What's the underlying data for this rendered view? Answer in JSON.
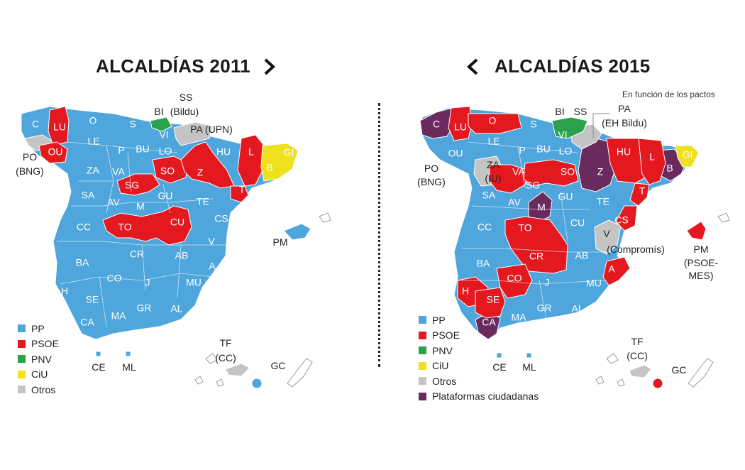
{
  "colors": {
    "PP": "#4ea6dc",
    "PSOE": "#e3191f",
    "PNV": "#2aa14a",
    "CiU": "#f0e11e",
    "Otros": "#c4c4c4",
    "Plataformas": "#6a2a5e"
  },
  "left_map": {
    "title": "ALCALDÍAS 2011",
    "nav_icon": "chevron-right-icon",
    "outside_labels": [
      {
        "id": "ss",
        "text": "SS"
      },
      {
        "id": "ss2",
        "text": "(Bildu)"
      },
      {
        "id": "pa",
        "text": "PA (UPN)"
      },
      {
        "id": "po",
        "text": "PO"
      },
      {
        "id": "po2",
        "text": "(BNG)"
      },
      {
        "id": "bi",
        "text": "BI"
      },
      {
        "id": "pm",
        "text": "PM"
      },
      {
        "id": "tf",
        "text": "TF"
      },
      {
        "id": "tf2",
        "text": "(CC)"
      },
      {
        "id": "gc",
        "text": "GC"
      },
      {
        "id": "ce",
        "text": "CE"
      },
      {
        "id": "ml",
        "text": "ML"
      }
    ],
    "provinces": [
      {
        "code": "C",
        "party": "PP"
      },
      {
        "code": "LU",
        "party": "PSOE"
      },
      {
        "code": "O",
        "party": "PP"
      },
      {
        "code": "S",
        "party": "PP"
      },
      {
        "code": "VI",
        "party": "PP"
      },
      {
        "code": "LE",
        "party": "PP"
      },
      {
        "code": "OU",
        "party": "PSOE"
      },
      {
        "code": "P",
        "party": "PP"
      },
      {
        "code": "BU",
        "party": "PP"
      },
      {
        "code": "LO",
        "party": "PP"
      },
      {
        "code": "HU",
        "party": "PP"
      },
      {
        "code": "L",
        "party": "PSOE"
      },
      {
        "code": "GI",
        "party": "CiU"
      },
      {
        "code": "B",
        "party": "CiU"
      },
      {
        "code": "ZA",
        "party": "PP"
      },
      {
        "code": "VA",
        "party": "PP"
      },
      {
        "code": "SO",
        "party": "PSOE"
      },
      {
        "code": "Z",
        "party": "PSOE"
      },
      {
        "code": "SG",
        "party": "PSOE"
      },
      {
        "code": "T",
        "party": "PSOE"
      },
      {
        "code": "SA",
        "party": "PP"
      },
      {
        "code": "AV",
        "party": "PP"
      },
      {
        "code": "GU",
        "party": "PP"
      },
      {
        "code": "M",
        "party": "PP"
      },
      {
        "code": "TE",
        "party": "PP"
      },
      {
        "code": "CS",
        "party": "PP"
      },
      {
        "code": "CC",
        "party": "PP"
      },
      {
        "code": "TO",
        "party": "PSOE"
      },
      {
        "code": "CU",
        "party": "PSOE"
      },
      {
        "code": "V",
        "party": "PP"
      },
      {
        "code": "CR",
        "party": "PP"
      },
      {
        "code": "AB",
        "party": "PP"
      },
      {
        "code": "BA",
        "party": "PP"
      },
      {
        "code": "A",
        "party": "PP"
      },
      {
        "code": "CO",
        "party": "PP"
      },
      {
        "code": "J",
        "party": "PP"
      },
      {
        "code": "MU",
        "party": "PP"
      },
      {
        "code": "H",
        "party": "PP"
      },
      {
        "code": "SE",
        "party": "PP"
      },
      {
        "code": "GR",
        "party": "PP"
      },
      {
        "code": "AL",
        "party": "PP"
      },
      {
        "code": "MA",
        "party": "PP"
      },
      {
        "code": "CA",
        "party": "PP"
      }
    ],
    "legend": [
      {
        "label": "PP",
        "party": "PP"
      },
      {
        "label": "PSOE",
        "party": "PSOE"
      },
      {
        "label": "PNV",
        "party": "PNV"
      },
      {
        "label": "CiU",
        "party": "CiU"
      },
      {
        "label": "Otros",
        "party": "Otros"
      }
    ]
  },
  "right_map": {
    "title": "ALCALDÍAS 2015",
    "nav_icon": "chevron-left-icon",
    "note": "En función de los pactos",
    "outside_labels": [
      {
        "id": "bi",
        "text": "BI"
      },
      {
        "id": "ss",
        "text": "SS"
      },
      {
        "id": "pa",
        "text": "PA"
      },
      {
        "id": "pa2",
        "text": "(EH Bildu)"
      },
      {
        "id": "po",
        "text": "PO"
      },
      {
        "id": "po2",
        "text": "(BNG)"
      },
      {
        "id": "za",
        "text": "ZA"
      },
      {
        "id": "za2",
        "text": "(IU)"
      },
      {
        "id": "v",
        "text": "V"
      },
      {
        "id": "v2",
        "text": "(Compromís)"
      },
      {
        "id": "pm",
        "text": "PM"
      },
      {
        "id": "pm2",
        "text": "(PSOE-"
      },
      {
        "id": "pm3",
        "text": "MES)"
      },
      {
        "id": "tf",
        "text": "TF"
      },
      {
        "id": "tf2",
        "text": "(CC)"
      },
      {
        "id": "gc",
        "text": "GC"
      },
      {
        "id": "ce",
        "text": "CE"
      },
      {
        "id": "ml",
        "text": "ML"
      }
    ],
    "provinces": [
      {
        "code": "C",
        "party": "Plataformas"
      },
      {
        "code": "LU",
        "party": "PSOE"
      },
      {
        "code": "O",
        "party": "PSOE"
      },
      {
        "code": "S",
        "party": "PP"
      },
      {
        "code": "VI",
        "party": "PNV"
      },
      {
        "code": "LE",
        "party": "PP"
      },
      {
        "code": "OU",
        "party": "PP"
      },
      {
        "code": "P",
        "party": "PP"
      },
      {
        "code": "BU",
        "party": "PP"
      },
      {
        "code": "LO",
        "party": "PP"
      },
      {
        "code": "HU",
        "party": "PSOE"
      },
      {
        "code": "L",
        "party": "PSOE"
      },
      {
        "code": "GI",
        "party": "CiU"
      },
      {
        "code": "B",
        "party": "Plataformas"
      },
      {
        "code": "Z",
        "party": "Plataformas"
      },
      {
        "code": "VA",
        "party": "PSOE"
      },
      {
        "code": "SO",
        "party": "PSOE"
      },
      {
        "code": "SG",
        "party": "PSOE"
      },
      {
        "code": "T",
        "party": "PSOE"
      },
      {
        "code": "SA",
        "party": "PP"
      },
      {
        "code": "AV",
        "party": "PP"
      },
      {
        "code": "GU",
        "party": "PP"
      },
      {
        "code": "M",
        "party": "Plataformas"
      },
      {
        "code": "TE",
        "party": "PP"
      },
      {
        "code": "CS",
        "party": "PSOE"
      },
      {
        "code": "CC",
        "party": "PP"
      },
      {
        "code": "TO",
        "party": "PSOE"
      },
      {
        "code": "CU",
        "party": "PP"
      },
      {
        "code": "CR",
        "party": "PSOE"
      },
      {
        "code": "AB",
        "party": "PP"
      },
      {
        "code": "BA",
        "party": "PP"
      },
      {
        "code": "A",
        "party": "PSOE"
      },
      {
        "code": "CO",
        "party": "PSOE"
      },
      {
        "code": "J",
        "party": "PP"
      },
      {
        "code": "MU",
        "party": "PP"
      },
      {
        "code": "H",
        "party": "PSOE"
      },
      {
        "code": "SE",
        "party": "PSOE"
      },
      {
        "code": "GR",
        "party": "PP"
      },
      {
        "code": "AL",
        "party": "PP"
      },
      {
        "code": "MA",
        "party": "PP"
      },
      {
        "code": "CA",
        "party": "Plataformas"
      }
    ],
    "legend": [
      {
        "label": "PP",
        "party": "PP"
      },
      {
        "label": "PSOE",
        "party": "PSOE"
      },
      {
        "label": "PNV",
        "party": "PNV"
      },
      {
        "label": "CiU",
        "party": "CiU"
      },
      {
        "label": "Otros",
        "party": "Otros"
      },
      {
        "label": "Plataformas ciudadanas",
        "party": "Plataformas"
      }
    ]
  }
}
